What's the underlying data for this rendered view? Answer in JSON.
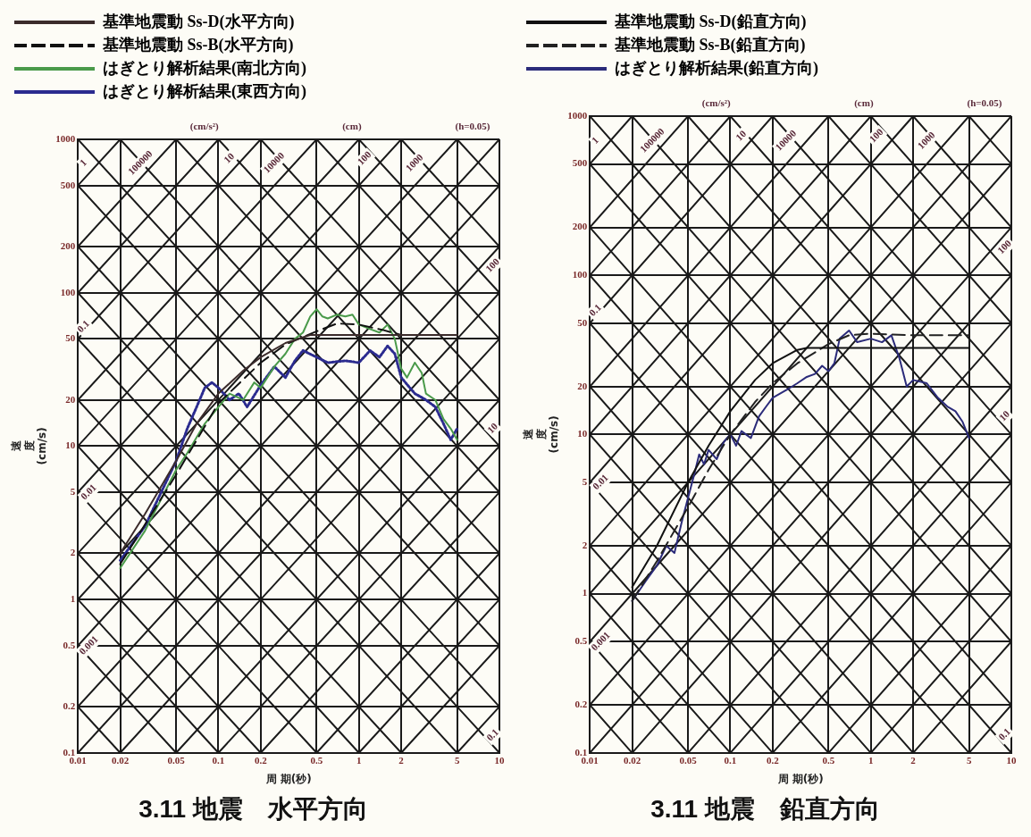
{
  "chart_data": [
    {
      "type": "line",
      "title": "3.11 地震　水平方向",
      "xlabel": "周 期(秒)",
      "ylabel": "速度(cm/s)",
      "log": "xy",
      "grid": true,
      "legend": "top",
      "marker": "none",
      "xlim": [
        0.01,
        10
      ],
      "xticks": [
        0.01,
        0.02,
        0.05,
        0.1,
        0.2,
        0.5,
        1,
        2,
        5,
        10
      ],
      "ylim": [
        0.1,
        1000
      ],
      "yticks": [
        0.1,
        0.2,
        0.5,
        1,
        2,
        5,
        10,
        20,
        50,
        100,
        200,
        500,
        1000
      ],
      "annotations": [
        "(cm/s²)",
        "(cm)",
        "(h=0.05)",
        {
          "text": "100000",
          "x": 0.028,
          "y": 700
        },
        {
          "text": "10000",
          "x": 0.25,
          "y": 700
        },
        {
          "text": "1000",
          "x": 2.5,
          "y": 700
        },
        {
          "text": "10",
          "x": 0.12,
          "y": 750
        },
        {
          "text": "100",
          "x": 1.1,
          "y": 750
        },
        {
          "text": "100",
          "x": 9,
          "y": 150
        },
        {
          "text": "10",
          "x": 9,
          "y": 13
        },
        {
          "text": "0.1",
          "x": 9,
          "y": 0.13
        },
        {
          "text": "1",
          "x": 0.011,
          "y": 700
        },
        {
          "text": "0.1",
          "x": 0.011,
          "y": 60
        },
        {
          "text": "0.01",
          "x": 0.012,
          "y": 5
        },
        {
          "text": "0.001",
          "x": 0.012,
          "y": 0.5
        }
      ],
      "series": [
        {
          "name": "基準地震動 Ss-D(水平方向)",
          "color": "#3b2b2b",
          "line_style": "solid",
          "x": [
            0.02,
            0.03,
            0.05,
            0.07,
            0.1,
            0.15,
            0.2,
            0.3,
            0.45,
            5
          ],
          "values": [
            2.0,
            3.6,
            8,
            14,
            22,
            31,
            38,
            47,
            53,
            53
          ]
        },
        {
          "name": "基準地震動 Ss-B(水平方向)",
          "color": "#111111",
          "line_style": "dashed",
          "x": [
            0.02,
            0.05,
            0.1,
            0.2,
            0.3,
            0.5,
            0.7,
            1,
            1.5,
            2
          ],
          "values": [
            1.7,
            6.5,
            19,
            35,
            46,
            56,
            63,
            62,
            57,
            53
          ]
        },
        {
          "name": "はぎとり解析結果(南北方向)",
          "color": "#4a9a4a",
          "line_style": "solid",
          "x": [
            0.02,
            0.03,
            0.05,
            0.06,
            0.08,
            0.1,
            0.12,
            0.15,
            0.18,
            0.2,
            0.25,
            0.3,
            0.35,
            0.4,
            0.45,
            0.5,
            0.55,
            0.6,
            0.7,
            0.8,
            0.9,
            1,
            1.2,
            1.4,
            1.6,
            1.8,
            2,
            2.2,
            2.5,
            2.8,
            3,
            3.5,
            4,
            4.5,
            5
          ],
          "values": [
            1.6,
            2.8,
            7,
            9,
            14,
            18,
            22,
            20,
            26,
            24,
            33,
            40,
            50,
            55,
            70,
            78,
            70,
            68,
            72,
            70,
            72,
            62,
            58,
            55,
            62,
            50,
            32,
            28,
            35,
            30,
            22,
            20,
            15,
            13,
            11
          ]
        },
        {
          "name": "はぎとり解析結果(東西方向)",
          "color": "#2b2b8f",
          "line_style": "dotted",
          "x": [
            0.02,
            0.03,
            0.05,
            0.06,
            0.07,
            0.08,
            0.09,
            0.1,
            0.12,
            0.14,
            0.16,
            0.2,
            0.25,
            0.3,
            0.35,
            0.4,
            0.5,
            0.6,
            0.8,
            1,
            1.2,
            1.4,
            1.6,
            1.8,
            2,
            2.5,
            3,
            3.5,
            4,
            4.5,
            5
          ],
          "values": [
            1.8,
            3,
            8,
            13,
            18,
            24,
            26,
            24,
            20,
            22,
            18,
            25,
            33,
            28,
            36,
            42,
            38,
            35,
            36,
            35,
            42,
            38,
            45,
            40,
            28,
            22,
            20,
            18,
            14,
            11,
            13
          ]
        },
        {
          "color": "#1a1a1a",
          "x": [
            5,
            10
          ],
          "values": [
            0.1,
            0.2
          ]
        },
        {
          "color": "#1a1a1a",
          "x": [
            2,
            10
          ],
          "values": [
            0.1,
            0.5
          ]
        },
        {
          "color": "#1a1a1a",
          "x": [
            1,
            10
          ],
          "values": [
            0.1,
            1
          ]
        },
        {
          "color": "#1a1a1a",
          "x": [
            0.5,
            10
          ],
          "values": [
            0.1,
            2
          ]
        },
        {
          "color": "#1a1a1a",
          "x": [
            0.2,
            10
          ],
          "values": [
            0.1,
            5
          ]
        },
        {
          "color": "#1a1a1a",
          "x": [
            0.1,
            10
          ],
          "values": [
            0.1,
            10
          ]
        },
        {
          "color": "#1a1a1a",
          "x": [
            0.05,
            10
          ],
          "values": [
            0.1,
            20
          ]
        },
        {
          "color": "#1a1a1a",
          "x": [
            0.02,
            10
          ],
          "values": [
            0.1,
            50
          ]
        },
        {
          "color": "#1a1a1a",
          "x": [
            0.01,
            10
          ],
          "values": [
            0.1,
            100
          ]
        },
        {
          "color": "#1a1a1a",
          "x": [
            0.01,
            10
          ],
          "values": [
            0.2,
            200
          ]
        },
        {
          "color": "#1a1a1a",
          "x": [
            0.01,
            10
          ],
          "values": [
            0.5,
            500
          ]
        },
        {
          "color": "#1a1a1a",
          "x": [
            0.01,
            10
          ],
          "values": [
            1,
            1000
          ]
        },
        {
          "color": "#1a1a1a",
          "x": [
            0.01,
            5
          ],
          "values": [
            2,
            1000
          ]
        },
        {
          "color": "#1a1a1a",
          "x": [
            0.01,
            2
          ],
          "values": [
            5,
            1000
          ]
        },
        {
          "color": "#1a1a1a",
          "x": [
            0.01,
            1
          ],
          "values": [
            10,
            1000
          ]
        },
        {
          "color": "#1a1a1a",
          "x": [
            0.01,
            0.5
          ],
          "values": [
            20,
            1000
          ]
        },
        {
          "color": "#1a1a1a",
          "x": [
            0.01,
            0.2
          ],
          "values": [
            50,
            1000
          ]
        },
        {
          "color": "#1a1a1a",
          "x": [
            0.01,
            0.1
          ],
          "values": [
            100,
            1000
          ]
        },
        {
          "color": "#1a1a1a",
          "x": [
            0.01,
            0.05
          ],
          "values": [
            200,
            1000
          ]
        },
        {
          "color": "#1a1a1a",
          "x": [
            0.01,
            0.02
          ],
          "values": [
            500,
            1000
          ]
        },
        {
          "color": "#1a1a1a",
          "x": [
            0.01,
            0.02
          ],
          "values": [
            0.2,
            0.1
          ]
        },
        {
          "color": "#1a1a1a",
          "x": [
            0.01,
            0.05
          ],
          "values": [
            0.5,
            0.1
          ]
        },
        {
          "color": "#1a1a1a",
          "x": [
            0.01,
            0.1
          ],
          "values": [
            1,
            0.1
          ]
        },
        {
          "color": "#1a1a1a",
          "x": [
            0.01,
            0.2
          ],
          "values": [
            2,
            0.1
          ]
        },
        {
          "color": "#1a1a1a",
          "x": [
            0.01,
            0.5
          ],
          "values": [
            5,
            0.1
          ]
        },
        {
          "color": "#1a1a1a",
          "x": [
            0.01,
            1
          ],
          "values": [
            10,
            0.1
          ]
        },
        {
          "color": "#1a1a1a",
          "x": [
            0.01,
            2
          ],
          "values": [
            20,
            0.1
          ]
        },
        {
          "color": "#1a1a1a",
          "x": [
            0.01,
            5
          ],
          "values": [
            50,
            0.1
          ]
        },
        {
          "color": "#1a1a1a",
          "x": [
            0.01,
            10
          ],
          "values": [
            100,
            0.1
          ]
        },
        {
          "color": "#1a1a1a",
          "x": [
            0.01,
            10
          ],
          "values": [
            200,
            0.2
          ]
        },
        {
          "color": "#1a1a1a",
          "x": [
            0.01,
            10
          ],
          "values": [
            500,
            0.5
          ]
        },
        {
          "color": "#1a1a1a",
          "x": [
            0.01,
            10
          ],
          "values": [
            1000,
            1
          ]
        },
        {
          "color": "#1a1a1a",
          "x": [
            0.02,
            10
          ],
          "values": [
            1000,
            2
          ]
        },
        {
          "color": "#1a1a1a",
          "x": [
            0.05,
            10
          ],
          "values": [
            1000,
            5
          ]
        },
        {
          "color": "#1a1a1a",
          "x": [
            0.1,
            10
          ],
          "values": [
            1000,
            10
          ]
        },
        {
          "color": "#1a1a1a",
          "x": [
            0.2,
            10
          ],
          "values": [
            1000,
            20
          ]
        },
        {
          "color": "#1a1a1a",
          "x": [
            0.5,
            10
          ],
          "values": [
            1000,
            50
          ]
        },
        {
          "color": "#1a1a1a",
          "x": [
            1,
            10
          ],
          "values": [
            1000,
            100
          ]
        },
        {
          "color": "#1a1a1a",
          "x": [
            2,
            10
          ],
          "values": [
            1000,
            200
          ]
        },
        {
          "color": "#1a1a1a",
          "x": [
            5,
            10
          ],
          "values": [
            1000,
            500
          ]
        }
      ]
    },
    {
      "type": "line",
      "title": "3.11 地震　鉛直方向",
      "xlabel": "周 期(秒)",
      "ylabel": "速度(cm/s)",
      "log": "xy",
      "grid": true,
      "legend": "top",
      "marker": "none",
      "xlim": [
        0.01,
        10
      ],
      "xticks": [
        0.01,
        0.02,
        0.05,
        0.1,
        0.2,
        0.5,
        1,
        2,
        5,
        10
      ],
      "ylim": [
        0.1,
        1000
      ],
      "yticks": [
        0.1,
        0.2,
        0.5,
        1,
        2,
        5,
        10,
        20,
        50,
        100,
        200,
        500,
        1000
      ],
      "annotations": [
        "(cm/s²)",
        "(cm)",
        "(h=0.05)",
        {
          "text": "100000",
          "x": 0.028,
          "y": 700
        },
        {
          "text": "10000",
          "x": 0.25,
          "y": 700
        },
        {
          "text": "1000",
          "x": 2.5,
          "y": 700
        },
        {
          "text": "10",
          "x": 0.12,
          "y": 750
        },
        {
          "text": "100",
          "x": 1.1,
          "y": 750
        },
        {
          "text": "100",
          "x": 9,
          "y": 150
        },
        {
          "text": "10",
          "x": 9,
          "y": 13
        },
        {
          "text": "0.1",
          "x": 9,
          "y": 0.13
        },
        {
          "text": "1",
          "x": 0.011,
          "y": 700
        },
        {
          "text": "0.1",
          "x": 0.011,
          "y": 60
        },
        {
          "text": "0.01",
          "x": 0.012,
          "y": 5
        },
        {
          "text": "0.001",
          "x": 0.012,
          "y": 0.5
        }
      ],
      "series": [
        {
          "name": "基準地震動 Ss-D(鉛直方向)",
          "color": "#111111",
          "line_style": "solid",
          "x": [
            0.02,
            0.03,
            0.05,
            0.07,
            0.1,
            0.15,
            0.2,
            0.3,
            0.35,
            0.5,
            5
          ],
          "values": [
            1.1,
            2,
            5,
            8.5,
            14,
            22,
            28,
            34,
            35,
            35,
            35
          ]
        },
        {
          "name": "基準地震動 Ss-B(鉛直方向)",
          "color": "#222222",
          "line_style": "dashed",
          "x": [
            0.02,
            0.03,
            0.05,
            0.07,
            0.1,
            0.15,
            0.2,
            0.3,
            0.5,
            0.7,
            1,
            2,
            5
          ],
          "values": [
            0.9,
            1.6,
            3.5,
            6,
            10,
            16,
            21,
            28,
            37,
            42,
            43,
            42,
            42
          ]
        },
        {
          "name": "はぎとり解析結果(鉛直方向)",
          "color": "#2b2b7a",
          "line_style": "solid",
          "x": [
            0.02,
            0.025,
            0.03,
            0.035,
            0.04,
            0.045,
            0.05,
            0.055,
            0.06,
            0.065,
            0.07,
            0.08,
            0.09,
            0.1,
            0.11,
            0.12,
            0.14,
            0.16,
            0.18,
            0.2,
            0.25,
            0.3,
            0.35,
            0.4,
            0.45,
            0.5,
            0.55,
            0.6,
            0.7,
            0.8,
            1,
            1.2,
            1.4,
            1.6,
            1.8,
            2,
            2.5,
            3,
            3.5,
            4,
            4.5,
            5
          ],
          "values": [
            0.9,
            1.2,
            1.5,
            2,
            1.8,
            2.8,
            4,
            5.5,
            7.5,
            6.5,
            8,
            7,
            9,
            10,
            8.5,
            10.5,
            9.5,
            13,
            15,
            17,
            19,
            21,
            23,
            24,
            27,
            25,
            28,
            40,
            45,
            38,
            40,
            38,
            42,
            30,
            20,
            22,
            21,
            17,
            15,
            14,
            12,
            9.5
          ]
        },
        {
          "color": "#1a1a1a",
          "x": [
            5,
            10
          ],
          "values": [
            0.1,
            0.2
          ]
        },
        {
          "color": "#1a1a1a",
          "x": [
            2,
            10
          ],
          "values": [
            0.1,
            0.5
          ]
        },
        {
          "color": "#1a1a1a",
          "x": [
            1,
            10
          ],
          "values": [
            0.1,
            1
          ]
        },
        {
          "color": "#1a1a1a",
          "x": [
            0.5,
            10
          ],
          "values": [
            0.1,
            2
          ]
        },
        {
          "color": "#1a1a1a",
          "x": [
            0.2,
            10
          ],
          "values": [
            0.1,
            5
          ]
        },
        {
          "color": "#1a1a1a",
          "x": [
            0.1,
            10
          ],
          "values": [
            0.1,
            10
          ]
        },
        {
          "color": "#1a1a1a",
          "x": [
            0.05,
            10
          ],
          "values": [
            0.1,
            20
          ]
        },
        {
          "color": "#1a1a1a",
          "x": [
            0.02,
            10
          ],
          "values": [
            0.1,
            50
          ]
        },
        {
          "color": "#1a1a1a",
          "x": [
            0.01,
            10
          ],
          "values": [
            0.1,
            100
          ]
        },
        {
          "color": "#1a1a1a",
          "x": [
            0.01,
            10
          ],
          "values": [
            0.2,
            200
          ]
        },
        {
          "color": "#1a1a1a",
          "x": [
            0.01,
            10
          ],
          "values": [
            0.5,
            500
          ]
        },
        {
          "color": "#1a1a1a",
          "x": [
            0.01,
            10
          ],
          "values": [
            1,
            1000
          ]
        },
        {
          "color": "#1a1a1a",
          "x": [
            0.01,
            5
          ],
          "values": [
            2,
            1000
          ]
        },
        {
          "color": "#1a1a1a",
          "x": [
            0.01,
            2
          ],
          "values": [
            5,
            1000
          ]
        },
        {
          "color": "#1a1a1a",
          "x": [
            0.01,
            1
          ],
          "values": [
            10,
            1000
          ]
        },
        {
          "color": "#1a1a1a",
          "x": [
            0.01,
            0.5
          ],
          "values": [
            20,
            1000
          ]
        },
        {
          "color": "#1a1a1a",
          "x": [
            0.01,
            0.2
          ],
          "values": [
            50,
            1000
          ]
        },
        {
          "color": "#1a1a1a",
          "x": [
            0.01,
            0.1
          ],
          "values": [
            100,
            1000
          ]
        },
        {
          "color": "#1a1a1a",
          "x": [
            0.01,
            0.05
          ],
          "values": [
            200,
            1000
          ]
        },
        {
          "color": "#1a1a1a",
          "x": [
            0.01,
            0.02
          ],
          "values": [
            500,
            1000
          ]
        },
        {
          "color": "#1a1a1a",
          "x": [
            0.01,
            0.02
          ],
          "values": [
            0.2,
            0.1
          ]
        },
        {
          "color": "#1a1a1a",
          "x": [
            0.01,
            0.05
          ],
          "values": [
            0.5,
            0.1
          ]
        },
        {
          "color": "#1a1a1a",
          "x": [
            0.01,
            0.1
          ],
          "values": [
            1,
            0.1
          ]
        },
        {
          "color": "#1a1a1a",
          "x": [
            0.01,
            0.2
          ],
          "values": [
            2,
            0.1
          ]
        },
        {
          "color": "#1a1a1a",
          "x": [
            0.01,
            0.5
          ],
          "values": [
            5,
            0.1
          ]
        },
        {
          "color": "#1a1a1a",
          "x": [
            0.01,
            1
          ],
          "values": [
            10,
            0.1
          ]
        },
        {
          "color": "#1a1a1a",
          "x": [
            0.01,
            2
          ],
          "values": [
            20,
            0.1
          ]
        },
        {
          "color": "#1a1a1a",
          "x": [
            0.01,
            5
          ],
          "values": [
            50,
            0.1
          ]
        },
        {
          "color": "#1a1a1a",
          "x": [
            0.01,
            10
          ],
          "values": [
            100,
            0.1
          ]
        },
        {
          "color": "#1a1a1a",
          "x": [
            0.01,
            10
          ],
          "values": [
            200,
            0.2
          ]
        },
        {
          "color": "#1a1a1a",
          "x": [
            0.01,
            10
          ],
          "values": [
            500,
            0.5
          ]
        },
        {
          "color": "#1a1a1a",
          "x": [
            0.01,
            10
          ],
          "values": [
            1000,
            1
          ]
        },
        {
          "color": "#1a1a1a",
          "x": [
            0.02,
            10
          ],
          "values": [
            1000,
            2
          ]
        },
        {
          "color": "#1a1a1a",
          "x": [
            0.05,
            10
          ],
          "values": [
            1000,
            5
          ]
        },
        {
          "color": "#1a1a1a",
          "x": [
            0.1,
            10
          ],
          "values": [
            1000,
            10
          ]
        },
        {
          "color": "#1a1a1a",
          "x": [
            0.2,
            10
          ],
          "values": [
            1000,
            20
          ]
        },
        {
          "color": "#1a1a1a",
          "x": [
            0.5,
            10
          ],
          "values": [
            1000,
            50
          ]
        },
        {
          "color": "#1a1a1a",
          "x": [
            1,
            10
          ],
          "values": [
            1000,
            100
          ]
        },
        {
          "color": "#1a1a1a",
          "x": [
            2,
            10
          ],
          "values": [
            1000,
            200
          ]
        },
        {
          "color": "#1a1a1a",
          "x": [
            5,
            10
          ],
          "values": [
            1000,
            500
          ]
        }
      ]
    }
  ]
}
